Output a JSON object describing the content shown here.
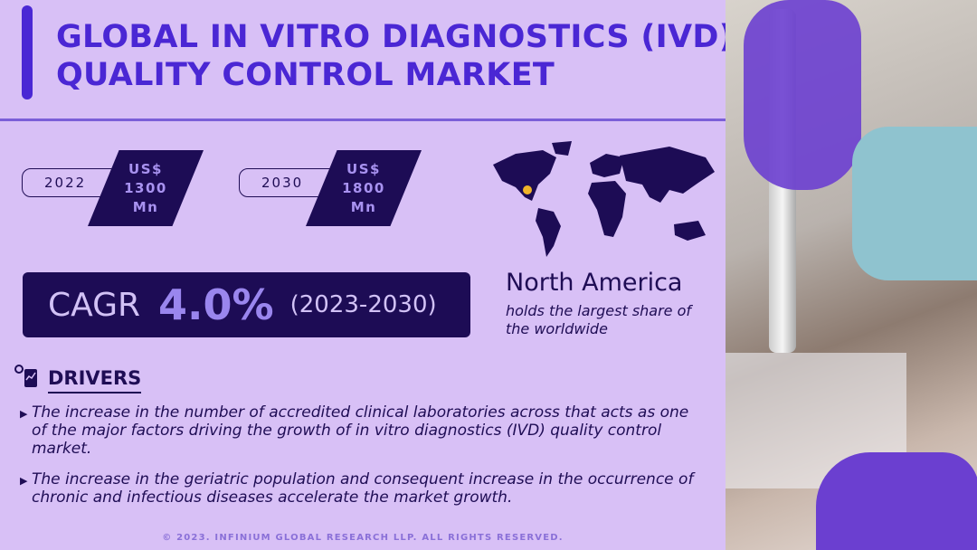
{
  "title": {
    "line1": "GLOBAL IN VITRO DIAGNOSTICS (IVD)",
    "line2": "QUALITY CONTROL MARKET"
  },
  "market": [
    {
      "year": "2022",
      "currency": "US$",
      "value": "1300",
      "unit": "Mn"
    },
    {
      "year": "2030",
      "currency": "US$",
      "value": "1800",
      "unit": "Mn"
    }
  ],
  "cagr": {
    "label": "CAGR",
    "value": "4.0%",
    "period": "(2023-2030)"
  },
  "region": {
    "name": "North America",
    "description": "holds the largest share of the worldwide",
    "marker_color": "#f0b429"
  },
  "drivers": {
    "heading": "DRIVERS",
    "items": [
      "The increase in the number of accredited clinical laboratories across that acts as one of the major factors driving the growth of in vitro diagnostics (IVD) quality control market.",
      "The increase in the geriatric population and consequent increase in the occurrence of chronic and infectious diseases accelerate the market growth."
    ]
  },
  "footer": "© 2023. INFINIUM GLOBAL RESEARCH LLP. ALL RIGHTS RESERVED.",
  "colors": {
    "background": "#d8c0f6",
    "navy": "#1d0c55",
    "accent": "#4a27d4"
  }
}
